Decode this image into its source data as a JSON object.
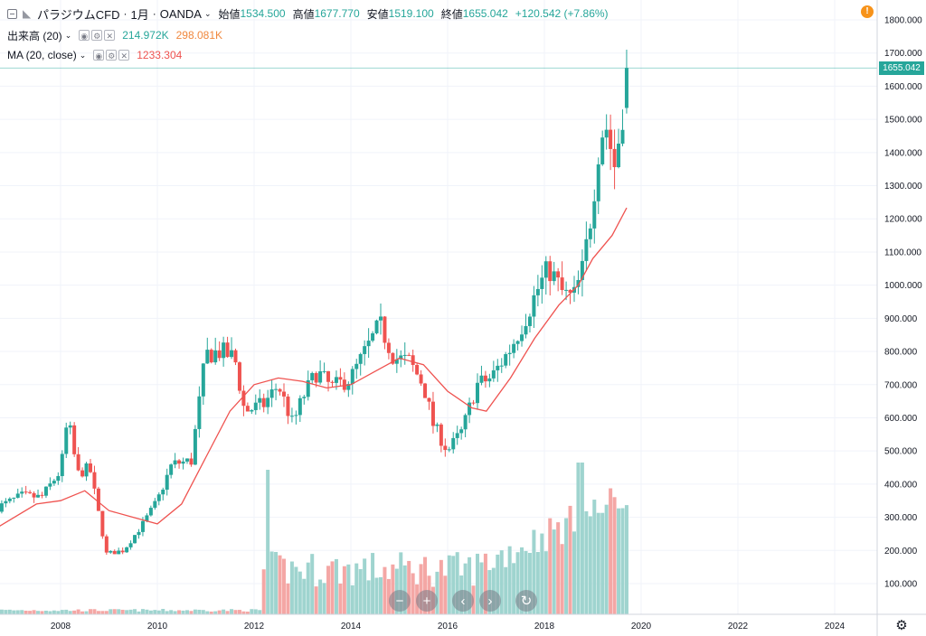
{
  "header": {
    "symbol": "パラジウムCFD",
    "sep1": "·",
    "interval": "1月",
    "sep2": "·",
    "source": "OANDA",
    "open_label": "始値",
    "open_value": "1534.500",
    "high_label": "高値",
    "high_value": "1677.770",
    "low_label": "安値",
    "low_value": "1519.100",
    "close_label": "終値",
    "close_value": "1655.042",
    "change": "+120.542 (+7.86%)"
  },
  "volume_legend": {
    "label": "出来高 (20)",
    "value1": "214.972K",
    "value2": "298.081K"
  },
  "ma_legend": {
    "label": "MA (20, close)",
    "value": "1233.304"
  },
  "alert_icon": "!",
  "price_tag": "1655.042",
  "icons": [
    "collapse-icon",
    "symbol-icon",
    "chevron-down-icon",
    "eye-icon",
    "gear-icon",
    "close-icon",
    "alert-icon",
    "zoom-out-icon",
    "zoom-in-icon",
    "scroll-left-icon",
    "scroll-right-icon",
    "reset-icon",
    "settings-icon"
  ],
  "colors": {
    "up": "#26a69a",
    "down": "#ef5350",
    "ma": "#ef5350",
    "vol_up": "#9fd4cf",
    "vol_down": "#f4a7a5",
    "alert": "#f7931a"
  },
  "navigation": {
    "zoom_out": "−",
    "zoom_in": "+",
    "left": "‹",
    "right": "›",
    "reset": "↻"
  },
  "settings_glyph": "⚙",
  "chart_data": {
    "type": "candlestick",
    "title": "パラジウムCFD · 1月 · OANDA",
    "y_ticks": [
      "1800.000",
      "1700.000",
      "1600.000",
      "1500.000",
      "1400.000",
      "1300.000",
      "1200.000",
      "1100.000",
      "1000.000",
      "900.000",
      "800.000",
      "700.000",
      "600.000",
      "500.000",
      "400.000",
      "300.000",
      "200.000",
      "100.000"
    ],
    "x_ticks": [
      "2008",
      "2010",
      "2012",
      "2014",
      "2016",
      "2018",
      "2020",
      "2022",
      "2024"
    ],
    "ylim": [
      0,
      1850
    ],
    "xlim": [
      2006.7,
      2025.0
    ],
    "anchors": [
      [
        2006.7,
        330
      ],
      [
        2007.2,
        365
      ],
      [
        2007.6,
        360
      ],
      [
        2008.0,
        440
      ],
      [
        2008.15,
        600
      ],
      [
        2008.35,
        430
      ],
      [
        2008.6,
        450
      ],
      [
        2008.8,
        300
      ],
      [
        2008.95,
        190
      ],
      [
        2009.3,
        200
      ],
      [
        2009.7,
        280
      ],
      [
        2010.0,
        350
      ],
      [
        2010.3,
        460
      ],
      [
        2010.7,
        470
      ],
      [
        2011.0,
        790
      ],
      [
        2011.3,
        800
      ],
      [
        2011.6,
        780
      ],
      [
        2011.8,
        620
      ],
      [
        2012.2,
        640
      ],
      [
        2012.5,
        700
      ],
      [
        2012.8,
        580
      ],
      [
        2013.0,
        660
      ],
      [
        2013.3,
        740
      ],
      [
        2013.6,
        690
      ],
      [
        2014.0,
        720
      ],
      [
        2014.3,
        800
      ],
      [
        2014.6,
        880
      ],
      [
        2014.9,
        780
      ],
      [
        2015.2,
        770
      ],
      [
        2015.5,
        700
      ],
      [
        2015.7,
        580
      ],
      [
        2016.0,
        500
      ],
      [
        2016.3,
        560
      ],
      [
        2016.6,
        700
      ],
      [
        2016.9,
        720
      ],
      [
        2017.3,
        810
      ],
      [
        2017.6,
        900
      ],
      [
        2017.9,
        1000
      ],
      [
        2018.1,
        1050
      ],
      [
        2018.4,
        970
      ],
      [
        2018.6,
        960
      ],
      [
        2018.8,
        1050
      ],
      [
        2019.0,
        1250
      ],
      [
        2019.1,
        1400
      ],
      [
        2019.25,
        1500
      ],
      [
        2019.45,
        1360
      ],
      [
        2019.6,
        1500
      ],
      [
        2019.7,
        1655
      ]
    ],
    "ma": [
      [
        2006.7,
        270
      ],
      [
        2007.5,
        340
      ],
      [
        2008.0,
        350
      ],
      [
        2008.5,
        380
      ],
      [
        2009.0,
        320
      ],
      [
        2009.5,
        300
      ],
      [
        2010.0,
        280
      ],
      [
        2010.5,
        340
      ],
      [
        2011.0,
        480
      ],
      [
        2011.5,
        620
      ],
      [
        2012.0,
        700
      ],
      [
        2012.5,
        720
      ],
      [
        2013.0,
        710
      ],
      [
        2013.5,
        690
      ],
      [
        2014.0,
        700
      ],
      [
        2014.5,
        740
      ],
      [
        2015.0,
        780
      ],
      [
        2015.5,
        760
      ],
      [
        2016.0,
        680
      ],
      [
        2016.5,
        630
      ],
      [
        2016.8,
        620
      ],
      [
        2017.3,
        720
      ],
      [
        2017.8,
        840
      ],
      [
        2018.3,
        940
      ],
      [
        2018.7,
        1000
      ],
      [
        2019.0,
        1080
      ],
      [
        2019.4,
        1150
      ],
      [
        2019.7,
        1233
      ]
    ],
    "volume_start": 2012.2,
    "volume_peaks": [
      [
        2012.3,
        440
      ],
      [
        2018.75,
        460
      ]
    ],
    "series": [
      {
        "name": "出来高 (20)"
      },
      {
        "name": "MA (20, close)"
      }
    ]
  }
}
